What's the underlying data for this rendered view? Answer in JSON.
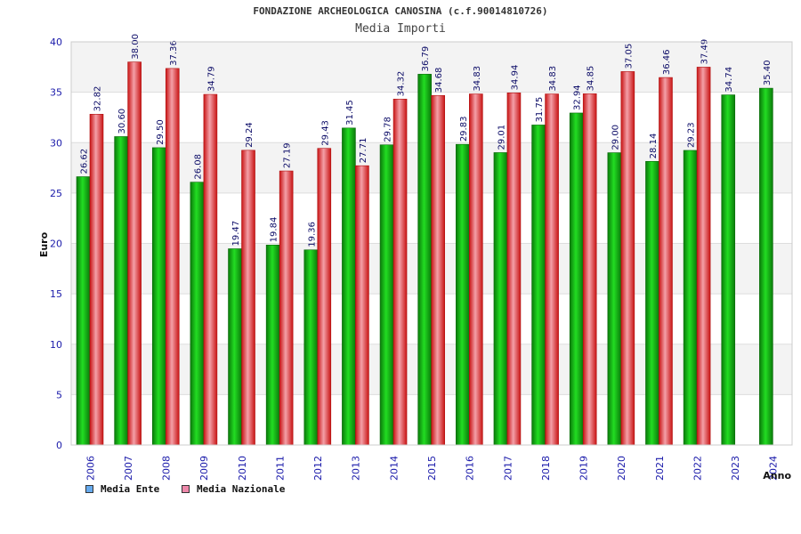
{
  "chart_data": {
    "type": "bar",
    "title": "FONDAZIONE ARCHEOLOGICA CANOSINA (c.f.90014810726)",
    "subtitle": "Media Importi",
    "ylabel": "Euro",
    "xlabel": "Anno",
    "ylim": [
      0,
      40
    ],
    "yticks": [
      0,
      5,
      10,
      15,
      20,
      25,
      30,
      35,
      40
    ],
    "categories": [
      "2006",
      "2007",
      "2008",
      "2009",
      "2010",
      "2011",
      "2012",
      "2013",
      "2014",
      "2015",
      "2016",
      "2017",
      "2018",
      "2019",
      "2020",
      "2021",
      "2022",
      "2023",
      "2024"
    ],
    "series": [
      {
        "name": "Media Ente",
        "color": "#12b012",
        "legend_color": "#66aaee",
        "values": [
          26.62,
          30.6,
          29.5,
          26.08,
          19.47,
          19.84,
          19.36,
          31.45,
          29.78,
          36.79,
          29.83,
          29.01,
          31.75,
          32.94,
          29.0,
          28.14,
          29.23,
          34.74,
          35.4
        ],
        "labels": [
          "26.62",
          "30.60",
          "29.50",
          "26.08",
          "19.47",
          "19.84",
          "19.36",
          "31.45",
          "29.78",
          "36.79",
          "29.83",
          "29.01",
          "31.75",
          "32.94",
          "29.00",
          "28.14",
          "29.23",
          "34.74",
          "35.40"
        ]
      },
      {
        "name": "Media Nazionale",
        "color": "#ee2222",
        "legend_color": "#ee88aa",
        "values": [
          32.82,
          38.0,
          37.36,
          34.79,
          29.24,
          27.19,
          29.43,
          27.71,
          34.32,
          34.68,
          34.83,
          34.94,
          34.83,
          34.85,
          37.05,
          36.46,
          37.49,
          null,
          null
        ],
        "labels": [
          "32.82",
          "38.00",
          "37.36",
          "34.79",
          "29.24",
          "27.19",
          "29.43",
          "27.71",
          "34.32",
          "34.68",
          "34.83",
          "34.94",
          "34.83",
          "34.85",
          "37.05",
          "36.46",
          "37.49",
          null,
          null
        ]
      }
    ],
    "grid": true,
    "legend_position": "bottom-left"
  }
}
